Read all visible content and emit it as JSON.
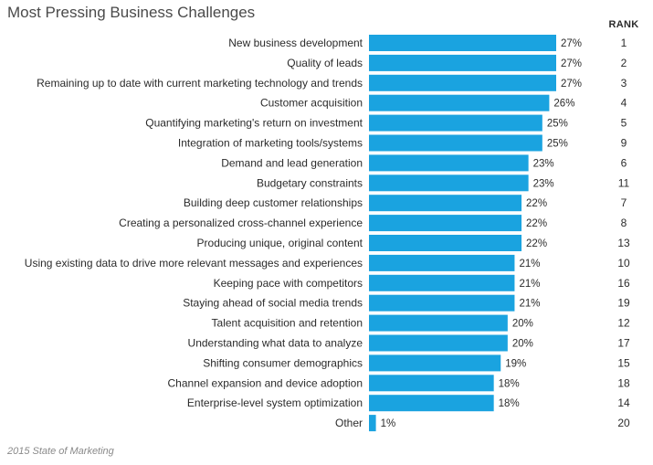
{
  "chart_data": {
    "type": "bar",
    "orientation": "horizontal",
    "title": "Most Pressing Business Challenges",
    "rank_header": "RANK",
    "source": "2015 State of Marketing",
    "bar_color": "#1aa3e0",
    "xlim": [
      0,
      27
    ],
    "categories": [
      "New business development",
      "Quality of leads",
      "Remaining up to date with current marketing technology and trends",
      "Customer acquisition",
      "Quantifying marketing's return on investment",
      "Integration of marketing tools/systems",
      "Demand and lead generation",
      "Budgetary constraints",
      "Building deep customer relationships",
      "Creating a personalized cross-channel experience",
      "Producing unique, original content",
      "Using existing data to drive more relevant messages and experiences",
      "Keeping pace with competitors",
      "Staying ahead of social media trends",
      "Talent acquisition and retention",
      "Understanding what data to analyze",
      "Shifting consumer demographics",
      "Channel expansion and device adoption",
      "Enterprise-level system optimization",
      "Other"
    ],
    "values": [
      27,
      27,
      27,
      26,
      25,
      25,
      23,
      23,
      22,
      22,
      22,
      21,
      21,
      21,
      20,
      20,
      19,
      18,
      18,
      1
    ],
    "value_labels": [
      "27%",
      "27%",
      "27%",
      "26%",
      "25%",
      "25%",
      "23%",
      "23%",
      "22%",
      "22%",
      "22%",
      "21%",
      "21%",
      "21%",
      "20%",
      "20%",
      "19%",
      "18%",
      "18%",
      "1%"
    ],
    "ranks": [
      "1",
      "2",
      "3",
      "4",
      "5",
      "9",
      "6",
      "11",
      "7",
      "8",
      "13",
      "10",
      "16",
      "19",
      "12",
      "17",
      "15",
      "18",
      "14",
      "20"
    ]
  }
}
